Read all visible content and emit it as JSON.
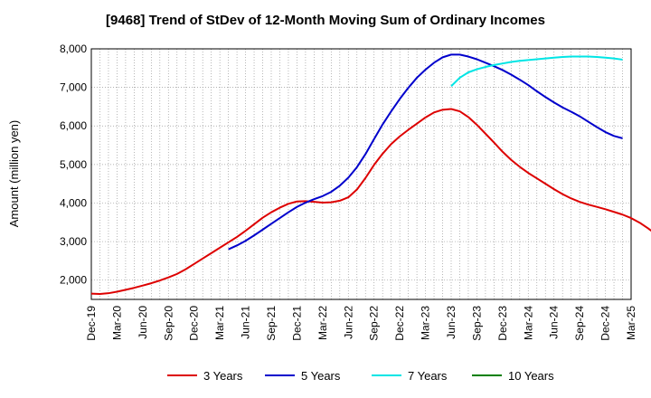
{
  "chart_data": {
    "type": "line",
    "title": "[9468]  Trend of StDev of 12-Month Moving Sum of Ordinary Incomes",
    "xlabel": "",
    "ylabel": "Amount (million yen)",
    "ylim": [
      1500,
      8000
    ],
    "yticks": [
      2000,
      3000,
      4000,
      5000,
      6000,
      7000,
      8000
    ],
    "ytick_labels": [
      "2,000",
      "3,000",
      "4,000",
      "5,000",
      "6,000",
      "7,000",
      "8,000"
    ],
    "x_start": "Dec-19",
    "x_end": "Mar-25",
    "xtick_labels": [
      "Dec-19",
      "Mar-20",
      "Jun-20",
      "Sep-20",
      "Dec-20",
      "Mar-21",
      "Jun-21",
      "Sep-21",
      "Dec-21",
      "Mar-22",
      "Jun-22",
      "Sep-22",
      "Dec-22",
      "Mar-23",
      "Jun-23",
      "Sep-23",
      "Dec-23",
      "Mar-24",
      "Jun-24",
      "Sep-24",
      "Dec-24",
      "Mar-25"
    ],
    "grid": true,
    "legend_position": "bottom",
    "series": [
      {
        "name": "3 Years",
        "color": "#dd0000",
        "start_index": 0,
        "values": [
          1650,
          1640,
          1660,
          1700,
          1750,
          1800,
          1860,
          1920,
          1990,
          2070,
          2160,
          2280,
          2420,
          2560,
          2700,
          2840,
          2980,
          3120,
          3280,
          3450,
          3620,
          3760,
          3880,
          3980,
          4040,
          4050,
          4030,
          4010,
          4020,
          4060,
          4150,
          4350,
          4650,
          4990,
          5280,
          5530,
          5730,
          5900,
          6060,
          6220,
          6350,
          6420,
          6440,
          6380,
          6230,
          6030,
          5800,
          5570,
          5330,
          5120,
          4940,
          4780,
          4640,
          4500,
          4360,
          4230,
          4120,
          4030,
          3960,
          3900,
          3840,
          3770,
          3700,
          3610,
          3490,
          3340,
          3170
        ]
      },
      {
        "name": "5 Years",
        "color": "#0000cc",
        "start_index": 16,
        "values": [
          2800,
          2900,
          3020,
          3160,
          3310,
          3460,
          3610,
          3760,
          3900,
          4010,
          4100,
          4180,
          4290,
          4450,
          4660,
          4930,
          5270,
          5660,
          6040,
          6380,
          6700,
          6990,
          7250,
          7460,
          7640,
          7780,
          7850,
          7850,
          7800,
          7730,
          7640,
          7550,
          7450,
          7330,
          7200,
          7060,
          6900,
          6750,
          6610,
          6480,
          6370,
          6250,
          6110,
          5970,
          5840,
          5740,
          5680
        ]
      },
      {
        "name": "7 Years",
        "color": "#00e5e5",
        "start_index": 42,
        "values": [
          7030,
          7250,
          7390,
          7470,
          7530,
          7580,
          7620,
          7660,
          7690,
          7710,
          7730,
          7750,
          7770,
          7790,
          7800,
          7800,
          7800,
          7790,
          7770,
          7750,
          7720
        ]
      },
      {
        "name": "10 Years",
        "color": "#008000",
        "start_index": 0,
        "values": []
      }
    ]
  }
}
